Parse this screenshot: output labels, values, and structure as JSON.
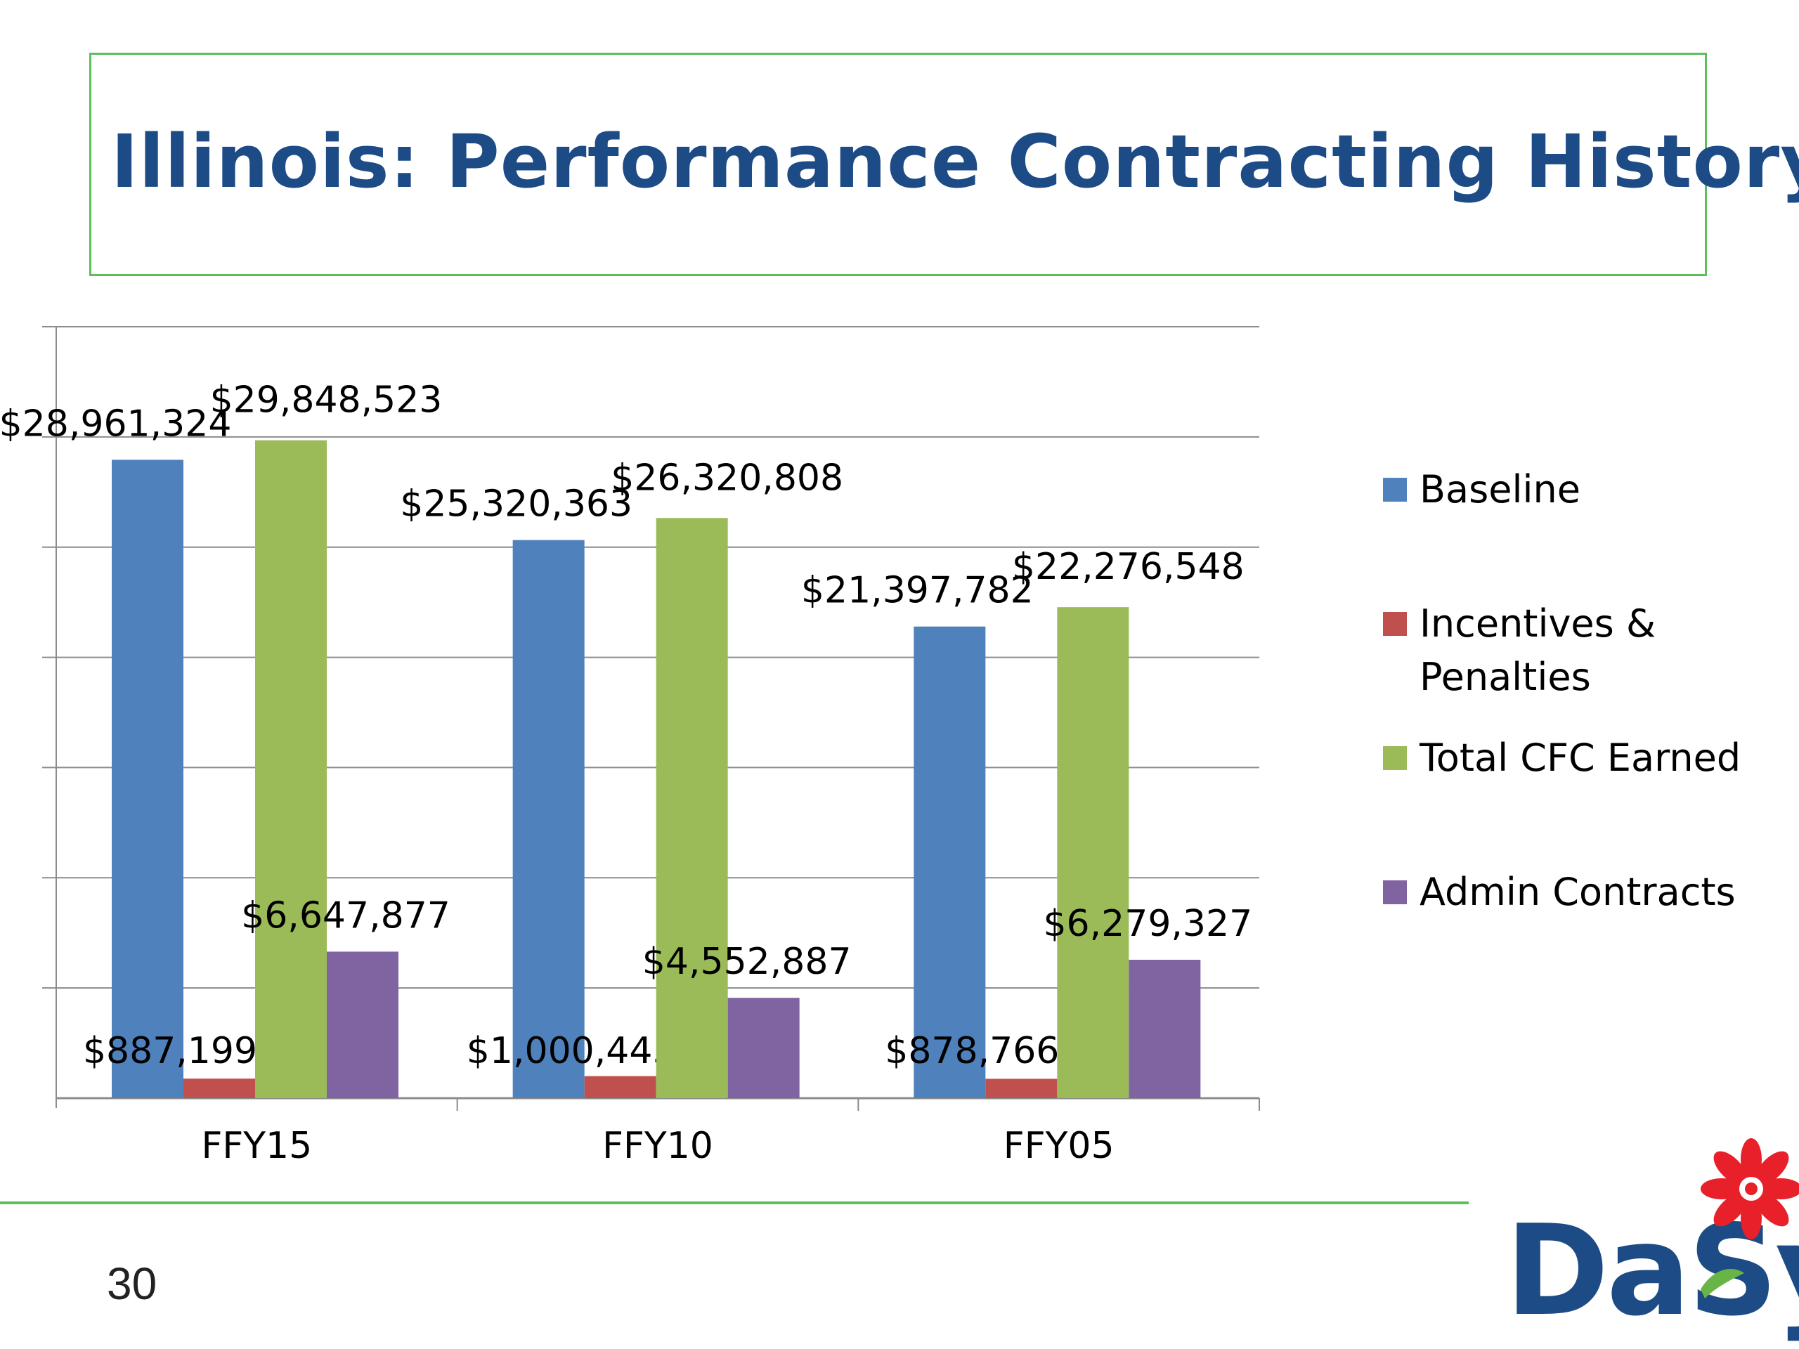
{
  "slide": {
    "title": "Illinois: Performance Contracting History",
    "page_number": "30"
  },
  "logo": {
    "text": "DaSy",
    "icon": "flower-icon"
  },
  "colors": {
    "title": "#1d4b85",
    "frame": "#5cbf5c",
    "logo": "#1d4b85",
    "flower": "#e8202a"
  },
  "chart_data": {
    "type": "bar",
    "title": "",
    "xlabel": "",
    "ylabel": "",
    "ylim": [
      0,
      35000000
    ],
    "grid": true,
    "legend_position": "right",
    "categories": [
      "FFY15",
      "FFY10",
      "FFY05"
    ],
    "series": [
      {
        "name": "Baseline",
        "color": "#4f81bd",
        "values": [
          28961324,
          25320363,
          21397782
        ],
        "labels": [
          "$28,961,324",
          "$25,320,363",
          "$21,397,782"
        ]
      },
      {
        "name": "Incentives & Penalties",
        "color": "#c0504d",
        "values": [
          887199,
          1000445,
          878766
        ],
        "labels": [
          "$887,199",
          "$1,000,445",
          "$878,766"
        ]
      },
      {
        "name": "Total CFC Earned",
        "color": "#9bbb59",
        "values": [
          29848523,
          26320808,
          22276548
        ],
        "labels": [
          "$29,848,523",
          "$26,320,808",
          "$22,276,548"
        ]
      },
      {
        "name": "Admin Contracts",
        "color": "#8064a2",
        "values": [
          6647877,
          4552887,
          6279327
        ],
        "labels": [
          "$6,647,877",
          "$4,552,887",
          "$6,279,327"
        ]
      }
    ]
  }
}
